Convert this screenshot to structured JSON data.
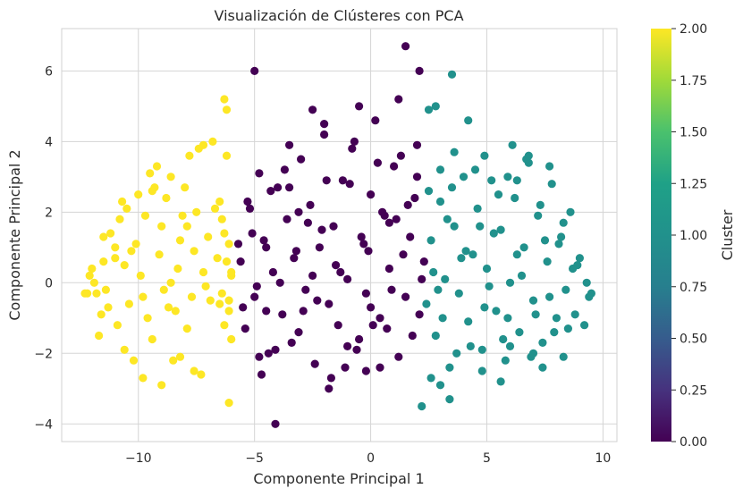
{
  "chart_data": {
    "type": "scatter",
    "title": "Visualización de Clústeres con PCA",
    "xlabel": "Componente Principal 1",
    "ylabel": "Componente Principal 2",
    "xlim": [
      -13.3,
      10.6
    ],
    "ylim": [
      -4.5,
      7.2
    ],
    "xticks": [
      -10,
      -5,
      0,
      5,
      10
    ],
    "xtick_labels": [
      "−10",
      "−5",
      "0",
      "5",
      "10"
    ],
    "yticks": [
      -4,
      -2,
      0,
      2,
      4,
      6
    ],
    "ytick_labels": [
      "−4",
      "−2",
      "0",
      "2",
      "4",
      "6"
    ],
    "grid": true,
    "colorbar": {
      "label": "Cluster",
      "range": [
        0.0,
        2.0
      ],
      "ticks": [
        0.0,
        0.25,
        0.5,
        0.75,
        1.0,
        1.25,
        1.5,
        1.75,
        2.0
      ],
      "tick_labels": [
        "0.00",
        "0.25",
        "0.50",
        "0.75",
        "1.00",
        "1.25",
        "1.50",
        "1.75",
        "2.00"
      ],
      "colormap": "viridis"
    },
    "cluster_colors": [
      "#440154",
      "#21918c",
      "#fde725"
    ],
    "series": [
      {
        "cluster": 2,
        "x": [
          -11.8,
          -12.1,
          -11.5,
          -11.6,
          -12.2,
          -11.3,
          -11.0,
          -11.9,
          -11.7,
          -11.2,
          -12.0,
          -11.4,
          -10.8,
          -10.9,
          -10.5,
          -10.6,
          -10.2,
          -10.4,
          -10.1,
          -10.7,
          -9.9,
          -9.8,
          -9.5,
          -9.6,
          -9.3,
          -9.1,
          -9.4,
          -9.0,
          -8.8,
          -8.9,
          -8.6,
          -8.5,
          -8.3,
          -8.1,
          -8.4,
          -8.0,
          -7.8,
          -7.9,
          -7.6,
          -7.5,
          -7.3,
          -7.1,
          -7.4,
          -7.0,
          -6.8,
          -6.9,
          -6.6,
          -6.5,
          -6.3,
          -6.1,
          -6.4,
          -6.0,
          -6.2,
          -6.7,
          -7.2,
          -7.7,
          -8.2,
          -8.7,
          -9.2,
          -9.7,
          -10.3,
          -10.0,
          -11.0,
          -11.5,
          -12.3,
          -6.1,
          -6.3,
          -6.2,
          -6.0,
          -6.4,
          -6.1,
          -6.5,
          -6.3,
          -6.2,
          -6.0,
          -6.1,
          -9.0,
          -8.2,
          -7.6,
          -7.2,
          -9.4,
          -10.6,
          -8.6,
          -7.9,
          -9.8
        ],
        "y": [
          -0.3,
          0.2,
          0.6,
          -0.9,
          -0.3,
          -0.7,
          1.0,
          0.0,
          -1.5,
          1.4,
          0.4,
          -0.2,
          1.8,
          -1.2,
          2.1,
          0.5,
          -2.2,
          -0.6,
          1.1,
          2.3,
          0.2,
          -0.4,
          3.1,
          -1.0,
          2.7,
          0.8,
          -1.6,
          1.6,
          2.4,
          -0.2,
          3.0,
          -2.2,
          0.4,
          1.9,
          -0.8,
          2.7,
          3.6,
          -1.3,
          0.9,
          2.0,
          -2.6,
          -0.1,
          3.8,
          1.3,
          4.0,
          -0.5,
          0.7,
          2.3,
          5.2,
          -0.5,
          1.8,
          0.2,
          3.6,
          2.1,
          0.3,
          -0.4,
          1.2,
          -0.7,
          3.3,
          1.9,
          0.9,
          2.5,
          0.7,
          1.3,
          -0.3,
          -0.8,
          -1.2,
          0.6,
          0.3,
          -0.3,
          1.1,
          -0.6,
          1.4,
          4.9,
          -1.6,
          -3.4,
          -2.9,
          -2.1,
          -2.5,
          3.9,
          2.6,
          -1.9,
          0.0,
          1.6,
          -2.7
        ],
        "name": ""
      },
      {
        "cluster": 0,
        "x": [
          -5.6,
          -5.4,
          -5.2,
          -5.0,
          -4.8,
          -4.6,
          -4.4,
          -4.2,
          -4.0,
          -3.8,
          -3.6,
          -3.4,
          -3.2,
          -3.0,
          -2.8,
          -2.6,
          -2.4,
          -2.2,
          -2.0,
          -1.8,
          -1.6,
          -1.4,
          -1.2,
          -1.0,
          -0.8,
          -0.6,
          -0.4,
          -0.2,
          0.0,
          0.2,
          0.4,
          0.6,
          0.8,
          1.0,
          1.2,
          1.4,
          1.6,
          1.8,
          2.0,
          2.2,
          -5.5,
          -5.1,
          -4.7,
          -4.3,
          -3.9,
          -3.5,
          -3.1,
          -2.7,
          -2.3,
          -1.9,
          -1.5,
          -1.1,
          -0.7,
          -0.3,
          0.1,
          0.5,
          0.9,
          1.3,
          1.7,
          2.1,
          -5.3,
          -4.9,
          -4.5,
          -4.1,
          -3.7,
          -3.3,
          -2.9,
          -2.5,
          -2.1,
          -1.7,
          -1.3,
          -0.9,
          -0.5,
          -0.1,
          0.3,
          0.7,
          1.1,
          1.5,
          1.9,
          2.3,
          -5.7,
          -4.5,
          -3.1,
          -1.8,
          -0.5,
          0.8,
          2.0,
          -4.8,
          -2.5,
          -0.2,
          1.5,
          -3.5,
          0.4,
          -4.1,
          2.1,
          -1.0,
          -5.0,
          1.2,
          -2.0,
          0.0
        ],
        "y": [
          0.6,
          -1.3,
          2.1,
          -0.4,
          3.1,
          1.2,
          -2.0,
          0.3,
          2.7,
          -0.9,
          1.8,
          -1.7,
          0.9,
          3.5,
          -0.2,
          2.2,
          -2.3,
          1.0,
          4.2,
          -0.6,
          1.6,
          -1.2,
          2.9,
          0.1,
          3.8,
          -1.9,
          1.3,
          -0.3,
          2.5,
          4.6,
          -1.0,
          1.9,
          0.4,
          3.3,
          -2.1,
          0.8,
          2.2,
          -1.5,
          3.0,
          0.1,
          -0.7,
          1.4,
          -2.6,
          2.6,
          0.0,
          3.9,
          -1.4,
          1.7,
          -0.5,
          2.9,
          0.5,
          -2.4,
          4.0,
          1.1,
          -1.2,
          2.0,
          -0.2,
          3.6,
          1.3,
          -0.9,
          2.3,
          -0.1,
          1.0,
          -1.9,
          3.2,
          0.7,
          -0.8,
          4.9,
          1.5,
          -2.7,
          0.3,
          2.8,
          -1.6,
          0.9,
          3.4,
          -1.3,
          1.8,
          -0.4,
          2.4,
          0.6,
          1.1,
          -0.8,
          2.0,
          -3.0,
          5.0,
          1.7,
          3.9,
          -2.1,
          0.2,
          -2.5,
          6.7,
          2.7,
          -2.4,
          -4.0,
          6.0,
          -1.8,
          6.0,
          5.2,
          4.5,
          -0.7
        ],
        "name": ""
      },
      {
        "cluster": 1,
        "x": [
          2.4,
          2.6,
          2.8,
          3.0,
          3.2,
          3.4,
          3.6,
          3.8,
          4.0,
          4.2,
          4.4,
          4.6,
          4.8,
          5.0,
          5.2,
          5.4,
          5.6,
          5.8,
          6.0,
          6.2,
          6.4,
          6.6,
          6.8,
          7.0,
          7.2,
          7.4,
          7.6,
          7.8,
          8.0,
          8.2,
          8.4,
          8.6,
          8.8,
          9.0,
          9.2,
          9.4,
          2.5,
          2.9,
          3.3,
          3.7,
          4.1,
          4.5,
          4.9,
          5.3,
          5.7,
          6.1,
          6.5,
          6.9,
          7.3,
          7.7,
          8.1,
          8.5,
          8.9,
          9.3,
          2.7,
          3.1,
          3.5,
          3.9,
          4.3,
          4.7,
          5.1,
          5.5,
          5.9,
          6.3,
          6.7,
          7.1,
          7.5,
          7.9,
          8.3,
          8.7,
          2.5,
          3.0,
          3.6,
          4.2,
          4.9,
          5.6,
          6.3,
          7.0,
          7.7,
          8.3,
          2.6,
          3.4,
          4.8,
          6.0,
          7.4,
          3.5,
          2.2,
          2.8,
          3.0,
          5.9,
          6.8,
          9.5
        ],
        "y": [
          -0.6,
          1.2,
          -1.5,
          2.3,
          0.1,
          -2.4,
          1.6,
          -0.3,
          3.0,
          -1.1,
          0.8,
          2.1,
          -1.9,
          0.4,
          2.9,
          -0.8,
          1.5,
          -2.2,
          0.0,
          2.4,
          -1.4,
          1.0,
          3.4,
          -0.5,
          1.9,
          -1.7,
          0.6,
          2.8,
          -1.0,
          1.3,
          -0.2,
          2.0,
          -0.9,
          0.7,
          -1.2,
          -0.4,
          2.6,
          -0.2,
          1.8,
          -2.0,
          0.9,
          3.2,
          -0.7,
          1.4,
          -1.6,
          3.9,
          0.2,
          -2.1,
          2.2,
          -0.4,
          1.1,
          -1.3,
          0.5,
          0.0,
          0.3,
          -1.0,
          2.7,
          0.7,
          -1.8,
          1.6,
          -0.1,
          2.5,
          -1.0,
          0.8,
          3.5,
          -0.9,
          1.2,
          -1.4,
          1.7,
          0.4,
          4.9,
          3.2,
          3.7,
          4.6,
          3.6,
          -2.8,
          2.9,
          -2.0,
          3.3,
          -2.1,
          -2.7,
          -3.3,
          -2.5,
          -1.8,
          -2.4,
          5.9,
          -3.5,
          5.0,
          -2.9,
          3.0,
          3.6,
          -0.3
        ],
        "name": ""
      }
    ]
  }
}
